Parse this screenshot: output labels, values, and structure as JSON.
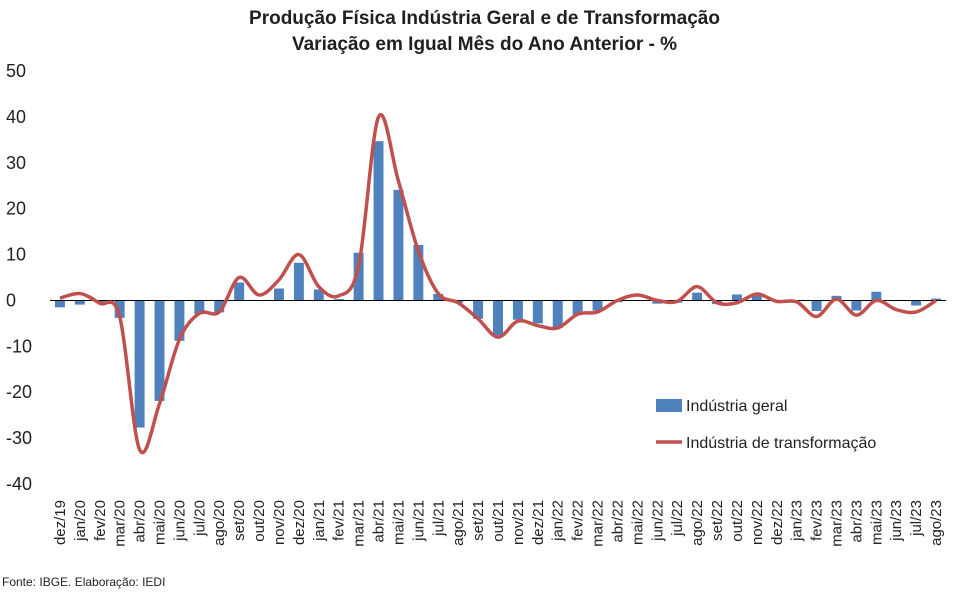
{
  "chart_data": {
    "type": "bar+line",
    "title": "Produção Física Indústria Geral e de Transformação",
    "subtitle": "Variação em Igual Mês do Ano Anterior - %",
    "ylim": [
      -40,
      50
    ],
    "yticks": [
      "50",
      "40",
      "30",
      "20",
      "10",
      "0",
      "-10",
      "-20",
      "-30",
      "-40"
    ],
    "categories": [
      "dez/19",
      "jan/20",
      "fev/20",
      "mar/20",
      "abr/20",
      "mai/20",
      "jun/20",
      "jul/20",
      "ago/20",
      "set/20",
      "out/20",
      "nov/20",
      "dez/20",
      "jan/21",
      "fev/21",
      "mar/21",
      "abr/21",
      "mai/21",
      "jun/21",
      "jul/21",
      "ago/21",
      "set/21",
      "out/21",
      "nov/21",
      "dez/21",
      "jan/22",
      "fev/22",
      "mar/22",
      "abr/22",
      "mai/22",
      "jun/22",
      "jul/22",
      "ago/22",
      "set/22",
      "out/22",
      "nov/22",
      "dez/22",
      "jan/23",
      "fev/23",
      "mar/23",
      "abr/23",
      "mai/23",
      "jun/23",
      "jul/23",
      "ago/23"
    ],
    "xtick_labels": [
      "dez/19",
      "jan/20",
      "fev/20",
      "mar/20",
      "abr/20",
      "mai/20",
      "jun/20",
      "jul/20",
      "ago/20",
      "set/20",
      "out/20",
      "nov/20",
      "dez/20",
      "jan/21",
      "fev/21",
      "mar/21",
      "abr/21",
      "mai/21",
      "jun/21",
      "jul/21",
      "ago/21",
      "set/21",
      "out/21",
      "nov/21",
      "dez/21",
      "jan/22",
      "fev/22",
      "mar/22",
      "abr/22",
      "mai/22",
      "jun/22",
      "jul/22",
      "ago/22",
      "set/22",
      "out/22",
      "nov/22",
      "dez/22",
      "jan/23",
      "fev/23",
      "mar/23",
      "abr/23",
      "mai/23",
      "jun/23",
      "jul/23",
      "ago/23"
    ],
    "series": [
      {
        "name": "Indústria geral",
        "type": "bar",
        "color": "#4f81bd",
        "values": [
          -1.5,
          -0.9,
          -0.4,
          -3.8,
          -27.7,
          -21.9,
          -8.8,
          -3.0,
          -2.6,
          3.9,
          0.1,
          2.6,
          8.2,
          2.4,
          0.3,
          10.4,
          34.7,
          24.1,
          12.1,
          1.4,
          -0.5,
          -4.0,
          -7.6,
          -4.2,
          -5.0,
          -6.0,
          -3.2,
          -2.2,
          -0.4,
          0.1,
          -0.7,
          -0.5,
          1.7,
          -0.8,
          1.3,
          1.0,
          -0.2,
          -0.1,
          -2.3,
          1.0,
          -2.2,
          1.9,
          0.0,
          -1.1,
          0.4
        ]
      },
      {
        "name": "Indústria de transformação",
        "type": "line",
        "color": "#c0504d",
        "values": [
          0.5,
          1.5,
          -0.6,
          -3.5,
          -32.5,
          -22.5,
          -8.5,
          -2.8,
          -2.5,
          5.0,
          1.2,
          4.5,
          10.0,
          3.0,
          1.0,
          7.5,
          40.0,
          26.0,
          10.8,
          1.5,
          -0.5,
          -4.0,
          -8.0,
          -4.5,
          -5.5,
          -6.0,
          -3.0,
          -2.5,
          0.0,
          1.2,
          0.0,
          -0.2,
          3.0,
          -0.5,
          -0.5,
          1.4,
          -0.2,
          -0.3,
          -3.5,
          0.3,
          -3.2,
          0.0,
          -2.0,
          -2.5,
          0.0
        ]
      }
    ],
    "legend_position": "right-center",
    "grid": false
  },
  "footer": {
    "source": "Fonte: IBGE. Elaboração: IEDI"
  }
}
